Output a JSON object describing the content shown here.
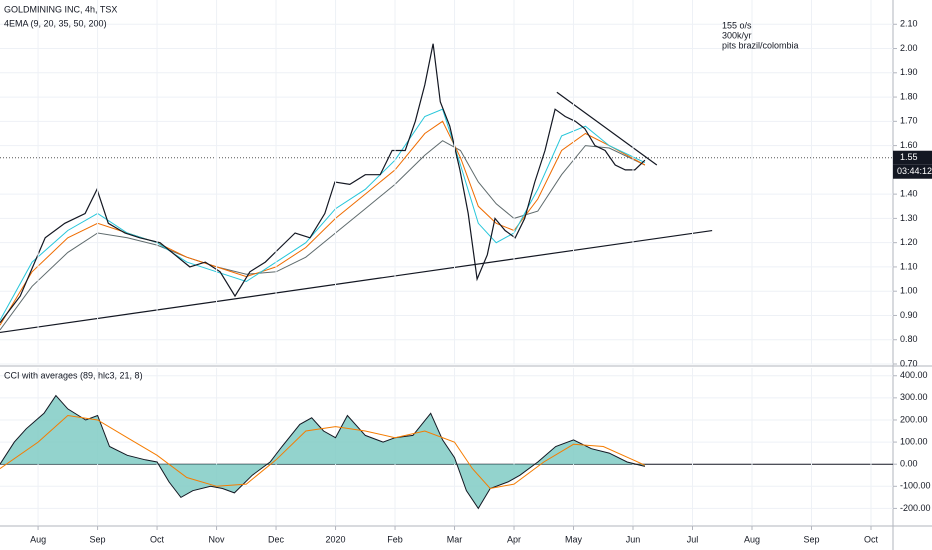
{
  "chart_data": [
    {
      "type": "line",
      "title": "GOLDMINING INC, 4h, TSX",
      "subtitle": "4EMA (9, 20, 35, 50, 200)",
      "annotations": [
        "155 o/s",
        "300k/yr",
        "pits brazil/colombia"
      ],
      "xlim": [
        -0.64,
        14.37
      ],
      "ylim": [
        0.7,
        2.2
      ],
      "yticks": [
        {
          "value": 0.7,
          "label": "0.70"
        },
        {
          "value": 0.8,
          "label": "0.80"
        },
        {
          "value": 0.9,
          "label": "0.90"
        },
        {
          "value": 1.0,
          "label": "1.00"
        },
        {
          "value": 1.1,
          "label": "1.10"
        },
        {
          "value": 1.2,
          "label": "1.20"
        },
        {
          "value": 1.3,
          "label": "1.30"
        },
        {
          "value": 1.4,
          "label": "1.40"
        },
        {
          "value": 1.6,
          "label": "1.60"
        },
        {
          "value": 1.7,
          "label": "1.70"
        },
        {
          "value": 1.8,
          "label": "1.80"
        },
        {
          "value": 1.9,
          "label": "1.90"
        },
        {
          "value": 2.0,
          "label": "2.00"
        },
        {
          "value": 2.1,
          "label": "2.10"
        }
      ],
      "grid": true,
      "last_price": {
        "value": 1.55,
        "label": "1.55"
      },
      "countdown": "03:44:12",
      "series": [
        {
          "color": "#131722",
          "x": [
            -0.64,
            -0.3,
            0.12,
            0.45,
            0.79,
            0.99,
            1.18,
            1.46,
            1.71,
            2.05,
            2.3,
            2.55,
            2.81,
            3.06,
            3.31,
            3.56,
            3.82,
            4.07,
            4.32,
            4.57,
            4.82,
            4.99,
            5.24,
            5.5,
            5.75,
            5.95,
            6.17,
            6.34,
            6.5,
            6.64,
            6.76,
            6.92,
            7.09,
            7.23,
            7.38,
            7.55,
            7.68,
            7.85,
            8.02,
            8.18,
            8.35,
            8.52,
            8.69,
            8.86,
            9.03,
            9.19,
            9.36,
            9.53,
            9.7,
            9.87,
            10.03,
            10.2
          ],
          "values": [
            0.87,
            0.98,
            1.22,
            1.28,
            1.32,
            1.42,
            1.28,
            1.24,
            1.22,
            1.2,
            1.15,
            1.1,
            1.12,
            1.08,
            0.98,
            1.08,
            1.12,
            1.18,
            1.24,
            1.22,
            1.32,
            1.45,
            1.44,
            1.48,
            1.48,
            1.58,
            1.58,
            1.7,
            1.85,
            2.02,
            1.78,
            1.68,
            1.5,
            1.32,
            1.05,
            1.15,
            1.3,
            1.25,
            1.22,
            1.3,
            1.45,
            1.58,
            1.75,
            1.72,
            1.7,
            1.67,
            1.6,
            1.58,
            1.52,
            1.5,
            1.5,
            1.54
          ]
        },
        {
          "color": "#26c6da",
          "x": [
            -0.64,
            -0.1,
            0.5,
            1.0,
            1.5,
            2.0,
            2.5,
            3.0,
            3.5,
            4.0,
            4.5,
            5.0,
            5.5,
            6.0,
            6.5,
            6.8,
            7.1,
            7.4,
            7.7,
            8.0,
            8.4,
            8.8,
            9.2,
            9.6,
            10.2
          ],
          "values": [
            0.88,
            1.12,
            1.25,
            1.32,
            1.24,
            1.2,
            1.12,
            1.08,
            1.04,
            1.12,
            1.2,
            1.34,
            1.42,
            1.54,
            1.72,
            1.75,
            1.52,
            1.28,
            1.2,
            1.24,
            1.42,
            1.64,
            1.68,
            1.6,
            1.53
          ]
        },
        {
          "color": "#ef6c00",
          "x": [
            -0.64,
            -0.1,
            0.5,
            1.0,
            1.5,
            2.0,
            2.5,
            3.0,
            3.5,
            4.0,
            4.5,
            5.0,
            5.5,
            6.0,
            6.5,
            6.8,
            7.1,
            7.4,
            7.7,
            8.0,
            8.4,
            8.8,
            9.2,
            9.6,
            10.2
          ],
          "values": [
            0.86,
            1.08,
            1.22,
            1.28,
            1.24,
            1.2,
            1.14,
            1.1,
            1.06,
            1.1,
            1.18,
            1.3,
            1.4,
            1.5,
            1.65,
            1.7,
            1.55,
            1.35,
            1.28,
            1.25,
            1.38,
            1.58,
            1.65,
            1.6,
            1.52
          ]
        },
        {
          "color": "#5f6b6d",
          "x": [
            -0.64,
            -0.1,
            0.5,
            1.0,
            1.5,
            2.0,
            2.5,
            3.0,
            3.5,
            4.0,
            4.5,
            5.0,
            5.5,
            6.0,
            6.5,
            6.8,
            7.1,
            7.4,
            7.7,
            8.0,
            8.4,
            8.8,
            9.2,
            9.6,
            10.2
          ],
          "values": [
            0.84,
            1.02,
            1.16,
            1.24,
            1.22,
            1.19,
            1.14,
            1.1,
            1.07,
            1.08,
            1.14,
            1.24,
            1.34,
            1.44,
            1.56,
            1.62,
            1.58,
            1.45,
            1.36,
            1.3,
            1.33,
            1.48,
            1.6,
            1.59,
            1.52
          ]
        }
      ],
      "trendlines": [
        {
          "x": [
            -0.64,
            11.33
          ],
          "y": [
            0.83,
            1.25
          ]
        },
        {
          "x": [
            8.72,
            10.4
          ],
          "y": [
            1.82,
            1.52
          ]
        }
      ]
    },
    {
      "type": "area",
      "title": "CCI with averages (89, hlc3, 21, 8)",
      "xlim": [
        -0.64,
        14.37
      ],
      "ylim": [
        -275,
        435
      ],
      "yticks": [
        {
          "value": 400,
          "label": "400.00"
        },
        {
          "value": 300,
          "label": "300.00"
        },
        {
          "value": 200,
          "label": "200.00"
        },
        {
          "value": 100,
          "label": "100.00"
        },
        {
          "value": 0,
          "label": "0.00"
        },
        {
          "value": -100,
          "label": "-100.00"
        },
        {
          "value": -200,
          "label": "-200.00"
        }
      ],
      "xticks": [
        {
          "value": 0,
          "label": "Aug"
        },
        {
          "value": 1,
          "label": "Sep"
        },
        {
          "value": 2,
          "label": "Oct"
        },
        {
          "value": 3,
          "label": "Nov"
        },
        {
          "value": 4,
          "label": "Dec"
        },
        {
          "value": 5,
          "label": "2020"
        },
        {
          "value": 6,
          "label": "Feb"
        },
        {
          "value": 7,
          "label": "Mar"
        },
        {
          "value": 8,
          "label": "Apr"
        },
        {
          "value": 9,
          "label": "May"
        },
        {
          "value": 10,
          "label": "Jun"
        },
        {
          "value": 11,
          "label": "Jul"
        },
        {
          "value": 12,
          "label": "Aug"
        },
        {
          "value": 13,
          "label": "Sep"
        },
        {
          "value": 14,
          "label": "Oct"
        }
      ],
      "grid": true,
      "series": [
        {
          "color": "#80cbc4",
          "x": [
            -0.64,
            -0.4,
            -0.2,
            0.1,
            0.3,
            0.5,
            0.8,
            1.0,
            1.2,
            1.5,
            1.8,
            2.0,
            2.2,
            2.4,
            2.6,
            2.9,
            3.1,
            3.3,
            3.6,
            3.9,
            4.1,
            4.4,
            4.6,
            4.8,
            5.0,
            5.2,
            5.5,
            5.8,
            6.0,
            6.3,
            6.6,
            6.8,
            7.0,
            7.2,
            7.4,
            7.6,
            7.9,
            8.1,
            8.4,
            8.7,
            9.0,
            9.3,
            9.6,
            9.9,
            10.2
          ],
          "values": [
            0,
            100,
            160,
            230,
            310,
            250,
            200,
            220,
            80,
            40,
            20,
            10,
            -80,
            -150,
            -120,
            -100,
            -110,
            -130,
            -50,
            10,
            80,
            180,
            210,
            150,
            120,
            220,
            130,
            100,
            120,
            130,
            230,
            110,
            30,
            -120,
            -200,
            -110,
            -80,
            -50,
            10,
            80,
            110,
            70,
            50,
            10,
            -10
          ]
        },
        {
          "color": "#f57c00",
          "x": [
            -0.64,
            0,
            0.5,
            1.0,
            1.5,
            2.0,
            2.5,
            3.0,
            3.5,
            4.0,
            4.5,
            5.0,
            5.5,
            6.0,
            6.5,
            7.0,
            7.3,
            7.6,
            8.0,
            8.5,
            9.0,
            9.5,
            10.0,
            10.2
          ],
          "values": [
            -20,
            100,
            220,
            200,
            120,
            40,
            -60,
            -100,
            -90,
            20,
            150,
            170,
            150,
            120,
            150,
            100,
            -20,
            -110,
            -90,
            10,
            90,
            80,
            20,
            -5
          ]
        }
      ]
    }
  ]
}
